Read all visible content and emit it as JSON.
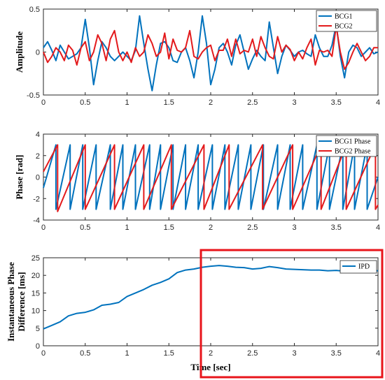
{
  "chart_data": [
    {
      "type": "line",
      "xlim": [
        0,
        4
      ],
      "ylim": [
        -0.5,
        0.5
      ],
      "xticks": [
        "0",
        "0.5",
        "1",
        "1.5",
        "2",
        "2.5",
        "3",
        "3.5",
        "4"
      ],
      "yticks": [
        "-0.5",
        "0",
        "0.5"
      ],
      "ylabel": "Amplitude",
      "xlabel": "",
      "legend": {
        "placement": "top-right"
      },
      "series": [
        {
          "name": "BCG1",
          "color": "#0072BD",
          "x": [
            0,
            0.05,
            0.1,
            0.15,
            0.2,
            0.25,
            0.3,
            0.35,
            0.4,
            0.45,
            0.5,
            0.55,
            0.6,
            0.65,
            0.7,
            0.75,
            0.8,
            0.85,
            0.9,
            0.95,
            1.0,
            1.05,
            1.1,
            1.15,
            1.2,
            1.25,
            1.3,
            1.35,
            1.4,
            1.45,
            1.5,
            1.55,
            1.6,
            1.65,
            1.7,
            1.75,
            1.8,
            1.85,
            1.9,
            1.95,
            2.0,
            2.05,
            2.1,
            2.15,
            2.2,
            2.25,
            2.3,
            2.35,
            2.4,
            2.45,
            2.5,
            2.55,
            2.6,
            2.65,
            2.7,
            2.75,
            2.8,
            2.85,
            2.9,
            2.95,
            3.0,
            3.05,
            3.1,
            3.15,
            3.2,
            3.25,
            3.3,
            3.35,
            3.4,
            3.45,
            3.5,
            3.55,
            3.6,
            3.65,
            3.7,
            3.75,
            3.8,
            3.85,
            3.9,
            3.95,
            4.0
          ],
          "y": [
            0.05,
            0.12,
            0.02,
            -0.1,
            0.08,
            0.0,
            -0.08,
            -0.05,
            -0.02,
            0.05,
            0.38,
            0.05,
            -0.38,
            -0.1,
            0.12,
            0.05,
            -0.05,
            -0.1,
            -0.05,
            0.0,
            -0.05,
            -0.1,
            0.02,
            0.42,
            0.1,
            -0.2,
            -0.45,
            -0.15,
            0.1,
            0.12,
            0.05,
            -0.1,
            -0.12,
            0.0,
            0.05,
            -0.1,
            -0.3,
            0.0,
            0.42,
            0.1,
            -0.38,
            -0.2,
            0.05,
            0.1,
            0.0,
            -0.15,
            0.08,
            0.2,
            0.0,
            -0.2,
            -0.08,
            0.02,
            -0.05,
            -0.1,
            0.35,
            0.05,
            -0.25,
            -0.05,
            0.08,
            0.02,
            -0.05,
            0.0,
            0.02,
            -0.02,
            -0.05,
            0.2,
            0.05,
            -0.05,
            -0.05,
            0.08,
            0.32,
            -0.05,
            -0.3,
            0.0,
            0.08,
            0.05,
            -0.05,
            0.0,
            0.05,
            -0.02,
            0.0
          ]
        },
        {
          "name": "BCG2",
          "color": "#E31A1C",
          "x": [
            0,
            0.05,
            0.1,
            0.15,
            0.2,
            0.25,
            0.3,
            0.35,
            0.4,
            0.45,
            0.5,
            0.55,
            0.6,
            0.65,
            0.7,
            0.75,
            0.8,
            0.85,
            0.9,
            0.95,
            1.0,
            1.05,
            1.1,
            1.15,
            1.2,
            1.25,
            1.3,
            1.35,
            1.4,
            1.45,
            1.5,
            1.55,
            1.6,
            1.65,
            1.7,
            1.75,
            1.8,
            1.85,
            1.9,
            1.95,
            2.0,
            2.05,
            2.1,
            2.15,
            2.2,
            2.25,
            2.3,
            2.35,
            2.4,
            2.45,
            2.5,
            2.55,
            2.6,
            2.65,
            2.7,
            2.75,
            2.8,
            2.85,
            2.9,
            2.95,
            3.0,
            3.05,
            3.1,
            3.15,
            3.2,
            3.25,
            3.3,
            3.35,
            3.4,
            3.45,
            3.5,
            3.55,
            3.6,
            3.65,
            3.7,
            3.75,
            3.8,
            3.85,
            3.9,
            3.95,
            4.0
          ],
          "y": [
            0.0,
            -0.12,
            -0.05,
            0.05,
            0.0,
            -0.1,
            0.08,
            0.02,
            -0.15,
            0.05,
            0.12,
            -0.1,
            0.0,
            0.2,
            0.1,
            -0.1,
            0.15,
            0.25,
            0.0,
            -0.1,
            0.0,
            -0.12,
            0.05,
            -0.05,
            0.0,
            0.2,
            0.1,
            -0.05,
            0.0,
            0.22,
            -0.08,
            0.15,
            0.02,
            0.0,
            0.05,
            0.25,
            -0.05,
            -0.08,
            0.0,
            0.05,
            0.08,
            -0.1,
            0.02,
            0.02,
            0.15,
            -0.05,
            0.15,
            -0.02,
            0.02,
            0.0,
            0.15,
            -0.05,
            0.18,
            0.05,
            -0.05,
            -0.08,
            0.18,
            0.0,
            0.08,
            0.03,
            -0.1,
            0.0,
            -0.08,
            0.05,
            0.15,
            -0.15,
            0.02,
            0.0,
            0.02,
            -0.05,
            0.3,
            0.0,
            -0.2,
            -0.12,
            0.0,
            0.1,
            0.0,
            -0.1,
            -0.05,
            0.05,
            0.05
          ]
        }
      ]
    },
    {
      "type": "line",
      "xlim": [
        0,
        4
      ],
      "ylim": [
        -4,
        4
      ],
      "xticks": [
        "0",
        "0.5",
        "1",
        "1.5",
        "2",
        "2.5",
        "3",
        "3.5",
        "4"
      ],
      "yticks": [
        "-4",
        "-2",
        "0",
        "2",
        "4"
      ],
      "ylabel": "Phase [rad]",
      "xlabel": "",
      "legend": {
        "placement": "top-right"
      },
      "series": [
        {
          "name": "BCG1 Phase",
          "color": "#0072BD",
          "x": [
            0,
            0.15,
            0.15,
            0.32,
            0.32,
            0.47,
            0.47,
            0.63,
            0.63,
            0.8,
            0.8,
            0.95,
            0.95,
            1.1,
            1.1,
            1.27,
            1.27,
            1.4,
            1.4,
            1.55,
            1.55,
            1.7,
            1.7,
            1.85,
            1.85,
            2.02,
            2.02,
            2.17,
            2.17,
            2.33,
            2.33,
            2.48,
            2.48,
            2.63,
            2.63,
            2.8,
            2.8,
            2.95,
            2.95,
            3.1,
            3.1,
            3.27,
            3.27,
            3.42,
            3.42,
            3.58,
            3.58,
            3.72,
            3.72,
            3.87,
            3.87,
            4.0
          ],
          "y": [
            -1,
            3.0,
            -3.0,
            3.0,
            -3.0,
            3.0,
            -3.0,
            3.0,
            -3.0,
            3.0,
            -3.0,
            3.0,
            -3.0,
            3.0,
            -3.0,
            3.0,
            -3.0,
            3.0,
            -3.0,
            3.0,
            -3.0,
            3.0,
            -3.0,
            3.0,
            -3.0,
            3.0,
            -3.0,
            3.0,
            -3.0,
            3.0,
            -3.0,
            3.0,
            -3.0,
            3.0,
            -3.0,
            3.0,
            -3.0,
            3.0,
            -3.0,
            3.0,
            -3.0,
            3.0,
            -3.0,
            3.0,
            -3.0,
            3.0,
            -3.0,
            3.0,
            -3.0,
            3.0,
            -3.0,
            0
          ]
        },
        {
          "name": "BCG2 Phase",
          "color": "#E31A1C",
          "x": [
            0,
            0.17,
            0.17,
            0.5,
            0.5,
            0.85,
            0.85,
            1.2,
            1.2,
            1.53,
            1.53,
            1.92,
            1.92,
            2.22,
            2.22,
            2.62,
            2.62,
            2.98,
            2.98,
            3.32,
            3.32,
            3.62,
            3.62,
            3.97,
            3.97,
            4.0
          ],
          "y": [
            0.5,
            3.0,
            -3.2,
            3.0,
            -3.0,
            3.0,
            -3.0,
            3.0,
            -3.0,
            3.0,
            -3.0,
            3.0,
            -3.0,
            3.0,
            -3.0,
            3.0,
            -3.0,
            3.0,
            -3.0,
            3.0,
            -3.0,
            3.0,
            -3.0,
            3.0,
            -3.0,
            -2.6
          ]
        }
      ]
    },
    {
      "type": "line",
      "xlim": [
        0,
        4
      ],
      "ylim": [
        0,
        25
      ],
      "xticks": [
        "0",
        "0.5",
        "1",
        "1.5",
        "2",
        "2.5",
        "3",
        "3.5",
        "4"
      ],
      "yticks": [
        "0",
        "5",
        "10",
        "15",
        "20",
        "25"
      ],
      "ylabel": [
        "Instantaneous Phase",
        "Difference [ms]"
      ],
      "xlabel": "Time [sec]",
      "legend": {
        "placement": "top-right"
      },
      "highlight": {
        "x": [
          1.95,
          4.0
        ],
        "color": "#E8151B"
      },
      "series": [
        {
          "name": "IPD",
          "color": "#0072BD",
          "x": [
            0,
            0.1,
            0.2,
            0.3,
            0.4,
            0.5,
            0.6,
            0.7,
            0.8,
            0.9,
            1.0,
            1.1,
            1.2,
            1.3,
            1.4,
            1.5,
            1.6,
            1.7,
            1.8,
            1.9,
            2.0,
            2.1,
            2.2,
            2.3,
            2.4,
            2.5,
            2.6,
            2.7,
            2.8,
            2.9,
            3.0,
            3.1,
            3.2,
            3.3,
            3.4,
            3.5,
            3.6,
            3.7,
            3.8,
            3.9,
            4.0
          ],
          "y": [
            4.8,
            5.8,
            6.8,
            8.5,
            9.2,
            9.5,
            10.2,
            11.5,
            11.8,
            12.3,
            14.0,
            15.0,
            16.0,
            17.2,
            18.0,
            19.0,
            20.8,
            21.5,
            21.8,
            22.3,
            22.6,
            22.8,
            22.6,
            22.3,
            22.2,
            21.8,
            22.0,
            22.5,
            22.2,
            21.8,
            21.7,
            21.6,
            21.5,
            21.5,
            21.3,
            21.4,
            21.2,
            21.3,
            21.4,
            21.3,
            21.3
          ]
        }
      ]
    }
  ]
}
